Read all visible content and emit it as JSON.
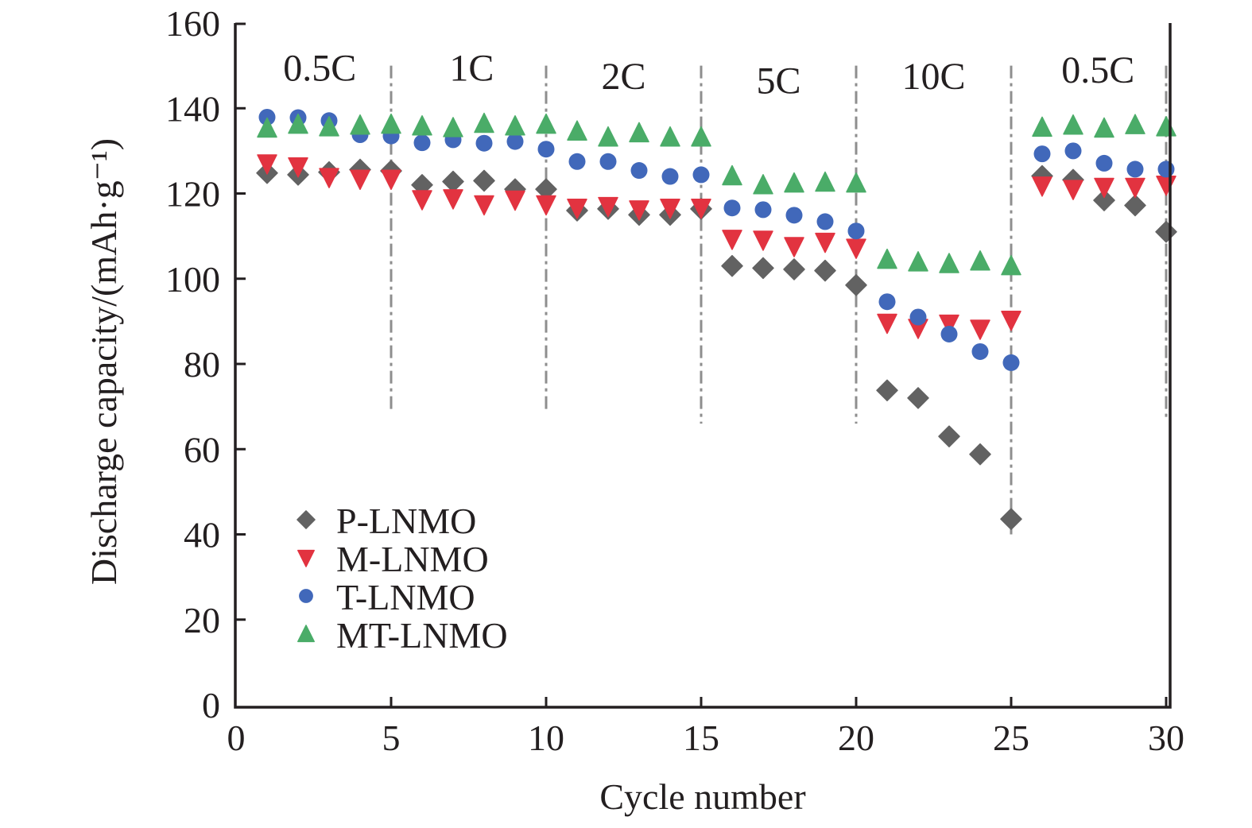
{
  "chart_data": {
    "type": "scatter",
    "title": "",
    "xlabel": "Cycle number",
    "ylabel": "Discharge capacity/(mAh·g⁻¹)",
    "xlim": [
      0,
      30
    ],
    "ylim": [
      0,
      160
    ],
    "xticks": [
      0,
      5,
      10,
      15,
      20,
      25,
      30
    ],
    "yticks": [
      0,
      20,
      40,
      60,
      80,
      100,
      120,
      140,
      160
    ],
    "grid": false,
    "legend_position": "bottom-left",
    "x": [
      1,
      2,
      3,
      4,
      5,
      6,
      7,
      8,
      9,
      10,
      11,
      12,
      13,
      14,
      15,
      16,
      17,
      18,
      19,
      20,
      21,
      22,
      23,
      24,
      25,
      26,
      27,
      28,
      29,
      30
    ],
    "series": [
      {
        "name": "P-LNMO",
        "marker": "diamond",
        "color": "#626262",
        "values": [
          124.8,
          124.4,
          125.0,
          125.6,
          125.3,
          122.0,
          122.8,
          123.0,
          121.0,
          121.0,
          116.0,
          116.4,
          115.0,
          115.0,
          116.4,
          103.0,
          102.5,
          102.2,
          101.9,
          98.5,
          73.8,
          72.0,
          63.0,
          58.8,
          43.6,
          124.1,
          123.2,
          118.4,
          117.2,
          111.0
        ]
      },
      {
        "name": "M-LNMO",
        "marker": "triangle-down",
        "color": "#e23340",
        "values": [
          127.0,
          126.3,
          123.8,
          123.4,
          123.4,
          118.6,
          118.8,
          117.4,
          118.5,
          117.4,
          116.6,
          117.0,
          116.2,
          116.6,
          116.6,
          109.3,
          109.1,
          107.6,
          108.6,
          107.2,
          89.6,
          88.4,
          89.4,
          88.2,
          90.3,
          121.8,
          121.0,
          121.5,
          121.5,
          122.0
        ]
      },
      {
        "name": "T-LNMO",
        "marker": "circle",
        "color": "#4168ba",
        "values": [
          137.9,
          137.8,
          137.1,
          133.8,
          133.5,
          131.9,
          132.6,
          131.8,
          132.2,
          130.4,
          127.5,
          127.5,
          125.4,
          124.0,
          124.4,
          116.6,
          116.2,
          114.9,
          113.4,
          111.2,
          94.6,
          91.0,
          87.0,
          82.9,
          80.3,
          129.3,
          130.0,
          127.1,
          125.7,
          125.7
        ]
      },
      {
        "name": "MT-LNMO",
        "marker": "triangle-up",
        "color": "#4aac68",
        "values": [
          135.3,
          136.2,
          135.6,
          136.0,
          136.2,
          135.8,
          135.4,
          136.4,
          135.8,
          136.2,
          134.6,
          133.2,
          134.2,
          133.2,
          133.2,
          124.1,
          122.0,
          122.4,
          122.6,
          122.4,
          104.5,
          103.9,
          103.5,
          104.1,
          103.0,
          135.5,
          136.0,
          135.3,
          136.1,
          135.6
        ]
      }
    ],
    "annotations": {
      "rate_labels": [
        {
          "text": "0.5C",
          "x": 2.7,
          "y": 146.5
        },
        {
          "text": "1C",
          "x": 7.6,
          "y": 146.5
        },
        {
          "text": "2C",
          "x": 12.5,
          "y": 144.5
        },
        {
          "text": "5C",
          "x": 17.5,
          "y": 143.5
        },
        {
          "text": "10C",
          "x": 22.5,
          "y": 144.5
        },
        {
          "text": "0.5C",
          "x": 27.8,
          "y": 146.0
        }
      ],
      "dividers": [
        {
          "x": 5,
          "y_top": 150,
          "y_bottom": 69
        },
        {
          "x": 10,
          "y_top": 150,
          "y_bottom": 69
        },
        {
          "x": 15,
          "y_top": 150,
          "y_bottom": 66
        },
        {
          "x": 20,
          "y_top": 150,
          "y_bottom": 66
        },
        {
          "x": 25,
          "y_top": 150,
          "y_bottom": 40
        },
        {
          "x": 30,
          "y_top": 150,
          "y_bottom": 67
        }
      ],
      "divider_color": "#8e8e8e"
    }
  }
}
